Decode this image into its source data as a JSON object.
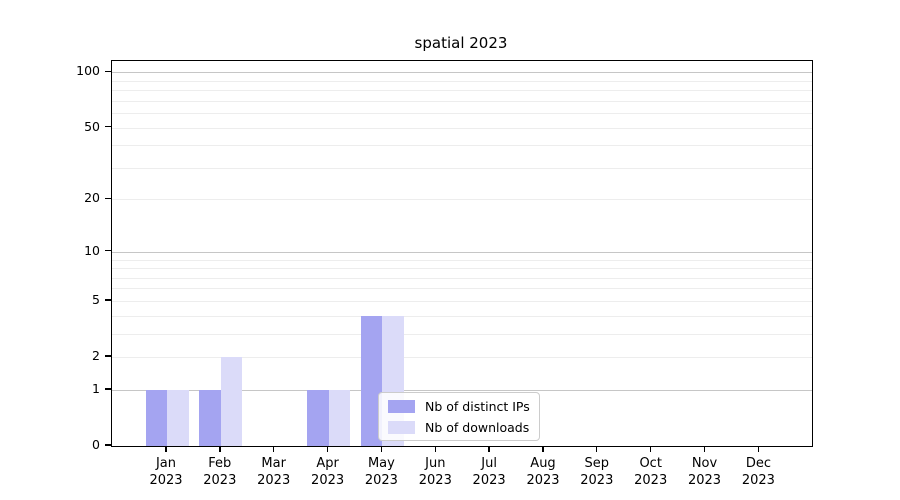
{
  "title": "spatial 2023",
  "chart_data": {
    "type": "bar",
    "title": "spatial 2023",
    "y_scale": "log10(1+x)",
    "categories": [
      "Jan",
      "Feb",
      "Mar",
      "Apr",
      "May",
      "Jun",
      "Jul",
      "Aug",
      "Sep",
      "Oct",
      "Nov",
      "Dec"
    ],
    "category_year": "2023",
    "series": [
      {
        "name": "Nb of distinct IPs",
        "color": "#a4a4f1",
        "values": [
          1,
          1,
          0,
          1,
          4,
          0,
          0,
          0,
          0,
          0,
          0,
          0
        ]
      },
      {
        "name": "Nb of downloads",
        "color": "#dbdbf9",
        "values": [
          1,
          2,
          0,
          1,
          4,
          0,
          0,
          0,
          0,
          0,
          0,
          0
        ]
      }
    ],
    "y_ticks": [
      0,
      1,
      2,
      5,
      10,
      20,
      50,
      100
    ],
    "y_minor_gridlines": [
      2,
      3,
      4,
      5,
      6,
      7,
      8,
      9,
      20,
      30,
      40,
      50,
      60,
      70,
      80,
      90
    ],
    "y_major_gridlines": [
      1,
      10,
      100
    ],
    "ylim_top": 115,
    "grid": "horizontal",
    "legend_position": "lower center"
  },
  "colors": {
    "background": "#ffffff",
    "axis": "#000000",
    "major_grid": "#c6c6c6",
    "minor_grid": "#ededed",
    "series1": "#a4a4f1",
    "series2": "#dbdbf9"
  }
}
